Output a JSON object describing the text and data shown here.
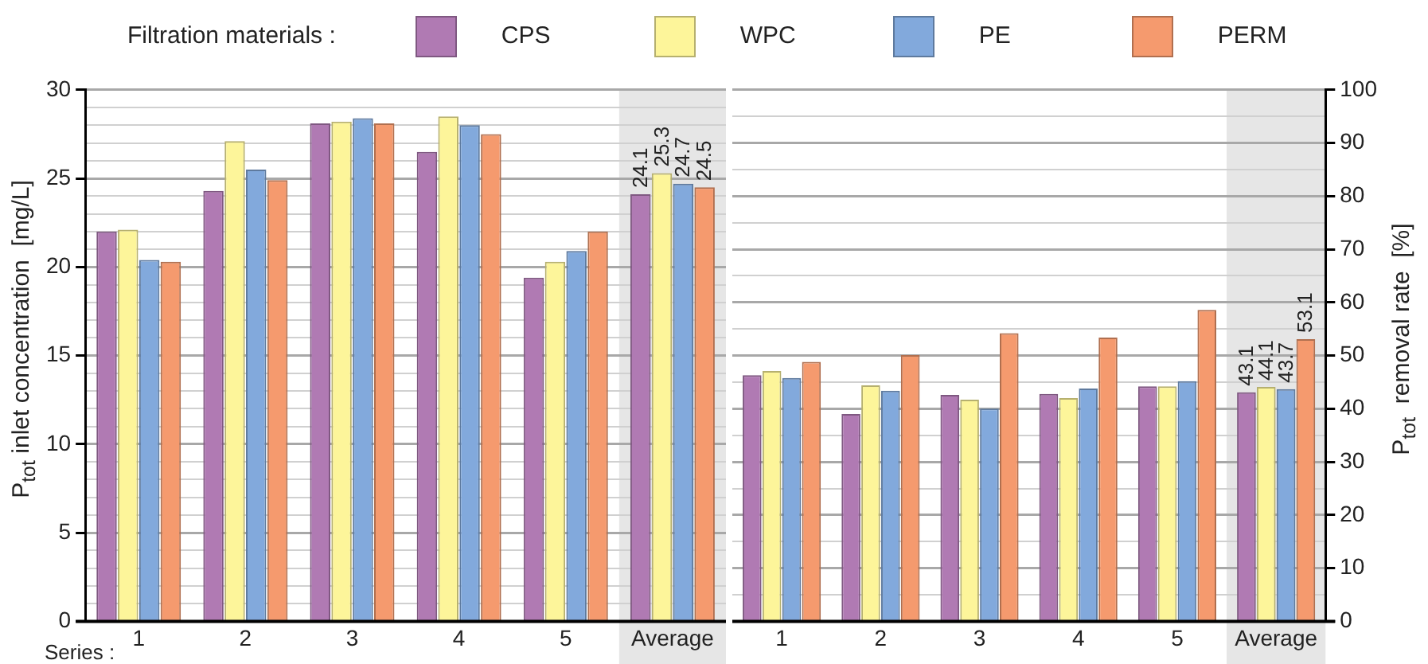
{
  "chart_data": [
    {
      "type": "bar",
      "legend_title": "Filtration materials :",
      "legend": "top",
      "ylabel": "P$_{tot}$ inlet concentration  [mg/L]",
      "annotations": [
        "Series :"
      ],
      "categories": [
        "1",
        "2",
        "3",
        "4",
        "5",
        "Average"
      ],
      "series": [
        {
          "name": "CPS",
          "color": "#b07ab3",
          "values": [
            22.0,
            24.3,
            28.1,
            26.5,
            19.4,
            24.1
          ],
          "value_labels": [
            null,
            null,
            null,
            null,
            null,
            "24.1"
          ]
        },
        {
          "name": "WPC",
          "color": "#fdf59a",
          "values": [
            22.1,
            27.1,
            28.2,
            28.5,
            20.3,
            25.3
          ],
          "value_labels": [
            null,
            null,
            null,
            null,
            null,
            "25.3"
          ]
        },
        {
          "name": "PE",
          "color": "#82a9dc",
          "values": [
            20.4,
            25.5,
            28.4,
            28.0,
            20.9,
            24.7
          ],
          "value_labels": [
            null,
            null,
            null,
            null,
            null,
            "24.7"
          ]
        },
        {
          "name": "PERM",
          "color": "#f59a6e",
          "values": [
            20.3,
            24.9,
            28.1,
            27.5,
            22.0,
            24.5
          ],
          "value_labels": [
            null,
            null,
            null,
            null,
            null,
            "24.5"
          ]
        }
      ],
      "ylim": [
        0,
        30
      ],
      "yticks": [
        0,
        {
          "value": 1,
          "label": null
        },
        {
          "value": 2,
          "label": null
        },
        {
          "value": 3,
          "label": null
        },
        {
          "value": 4,
          "label": null
        },
        5,
        {
          "value": 6,
          "label": null
        },
        {
          "value": 7,
          "label": null
        },
        {
          "value": 8,
          "label": null
        },
        {
          "value": 9,
          "label": null
        },
        10,
        {
          "value": 11,
          "label": null
        },
        {
          "value": 12,
          "label": null
        },
        {
          "value": 13,
          "label": null
        },
        {
          "value": 14,
          "label": null
        },
        15,
        {
          "value": 16,
          "label": null
        },
        {
          "value": 17,
          "label": null
        },
        {
          "value": 18,
          "label": null
        },
        {
          "value": 19,
          "label": null
        },
        20,
        {
          "value": 21,
          "label": null
        },
        {
          "value": 22,
          "label": null
        },
        {
          "value": 23,
          "label": null
        },
        {
          "value": 24,
          "label": null
        },
        25,
        {
          "value": 26,
          "label": null
        },
        {
          "value": 27,
          "label": null
        },
        {
          "value": 28,
          "label": null
        },
        {
          "value": 29,
          "label": null
        },
        30
      ],
      "grid": "y",
      "bands": [
        {
          "axis": "x",
          "from": "Average",
          "to": "Average",
          "color": "#e6e6e6"
        }
      ]
    },
    {
      "type": "bar",
      "y2label": "P$_{tot}$  removal rate  [%]",
      "categories": [
        "1",
        "2",
        "3",
        "4",
        "5",
        "Average"
      ],
      "series": [
        {
          "color": "#b07ab3",
          "axis": "y2",
          "values": [
            46.3,
            39.0,
            42.6,
            42.8,
            44.2,
            43.1
          ],
          "value_labels": [
            null,
            null,
            null,
            null,
            null,
            "43.1"
          ]
        },
        {
          "color": "#fdf59a",
          "axis": "y2",
          "values": [
            47.1,
            44.4,
            41.7,
            42.0,
            44.2,
            44.1
          ],
          "value_labels": [
            null,
            null,
            null,
            null,
            null,
            "44.1"
          ]
        },
        {
          "color": "#82a9dc",
          "axis": "y2",
          "values": [
            45.8,
            43.4,
            40.0,
            43.8,
            45.2,
            43.7
          ],
          "value_labels": [
            null,
            null,
            null,
            null,
            null,
            "43.7"
          ]
        },
        {
          "color": "#f59a6e",
          "axis": "y2",
          "values": [
            48.8,
            50.1,
            54.2,
            53.4,
            58.6,
            53.1
          ],
          "value_labels": [
            null,
            null,
            null,
            null,
            null,
            "53.1"
          ]
        }
      ],
      "y2lim": [
        0,
        100
      ],
      "y2ticks": [
        0,
        {
          "value": 5,
          "label": null
        },
        10,
        {
          "value": 15,
          "label": null
        },
        20,
        {
          "value": 25,
          "label": null
        },
        30,
        {
          "value": 35,
          "label": null
        },
        40,
        {
          "value": 45,
          "label": null
        },
        50,
        {
          "value": 55,
          "label": null
        },
        60,
        {
          "value": 65,
          "label": null
        },
        70,
        {
          "value": 75,
          "label": null
        },
        80,
        {
          "value": 85,
          "label": null
        },
        90,
        {
          "value": 95,
          "label": null
        },
        100
      ],
      "grid": "y",
      "bands": [
        {
          "axis": "x",
          "from": "Average",
          "to": "Average",
          "color": "#e6e6e6"
        }
      ]
    }
  ]
}
